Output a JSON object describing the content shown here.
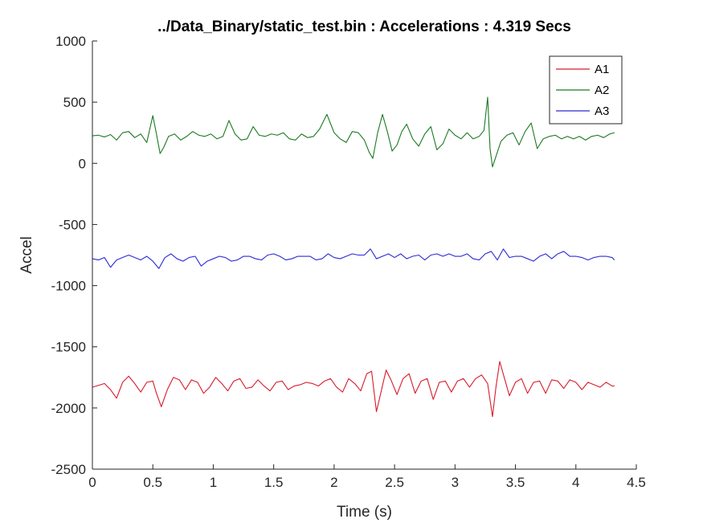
{
  "chart_data": {
    "type": "line",
    "title": "../Data_Binary/static_test.bin : Accelerations : 4.319 Secs",
    "xlabel": "Time (s)",
    "ylabel": "Accel",
    "xlim": [
      0,
      4.5
    ],
    "ylim": [
      -2500,
      1000
    ],
    "xticks": [
      0,
      0.5,
      1,
      1.5,
      2,
      2.5,
      3,
      3.5,
      4,
      4.5
    ],
    "xtick_labels": [
      "0",
      "0.5",
      "1",
      "1.5",
      "2",
      "2.5",
      "3",
      "3.5",
      "4",
      "4.5"
    ],
    "yticks": [
      -2500,
      -2000,
      -1500,
      -1000,
      -500,
      0,
      500,
      1000
    ],
    "ytick_labels": [
      "-2500",
      "-2000",
      "-1500",
      "-1000",
      "-500",
      "0",
      "500",
      "1000"
    ],
    "grid": false,
    "legend_position": "top-right",
    "series": [
      {
        "name": "A1",
        "color": "#d81b2c",
        "x": [
          0,
          0.1,
          0.15,
          0.2,
          0.25,
          0.3,
          0.35,
          0.4,
          0.45,
          0.5,
          0.53,
          0.57,
          0.62,
          0.67,
          0.72,
          0.77,
          0.82,
          0.87,
          0.92,
          0.97,
          1.02,
          1.07,
          1.12,
          1.17,
          1.22,
          1.27,
          1.32,
          1.37,
          1.42,
          1.47,
          1.52,
          1.57,
          1.62,
          1.67,
          1.72,
          1.77,
          1.82,
          1.87,
          1.92,
          1.97,
          2.02,
          2.07,
          2.12,
          2.17,
          2.22,
          2.27,
          2.31,
          2.35,
          2.39,
          2.43,
          2.47,
          2.52,
          2.57,
          2.62,
          2.67,
          2.72,
          2.77,
          2.82,
          2.87,
          2.92,
          2.97,
          3.02,
          3.07,
          3.12,
          3.17,
          3.22,
          3.27,
          3.31,
          3.34,
          3.37,
          3.41,
          3.45,
          3.5,
          3.55,
          3.6,
          3.65,
          3.7,
          3.75,
          3.8,
          3.85,
          3.9,
          3.95,
          4.0,
          4.05,
          4.1,
          4.15,
          4.2,
          4.25,
          4.3,
          4.319
        ],
        "y": [
          -1830,
          -1800,
          -1850,
          -1920,
          -1790,
          -1740,
          -1800,
          -1870,
          -1790,
          -1780,
          -1880,
          -1990,
          -1850,
          -1750,
          -1770,
          -1850,
          -1770,
          -1790,
          -1880,
          -1830,
          -1750,
          -1800,
          -1860,
          -1780,
          -1760,
          -1840,
          -1830,
          -1770,
          -1820,
          -1860,
          -1790,
          -1780,
          -1850,
          -1820,
          -1810,
          -1790,
          -1800,
          -1820,
          -1780,
          -1760,
          -1830,
          -1870,
          -1760,
          -1800,
          -1860,
          -1720,
          -1700,
          -2030,
          -1860,
          -1690,
          -1770,
          -1890,
          -1760,
          -1720,
          -1880,
          -1780,
          -1760,
          -1930,
          -1790,
          -1780,
          -1870,
          -1780,
          -1760,
          -1830,
          -1760,
          -1730,
          -1800,
          -2070,
          -1820,
          -1620,
          -1760,
          -1900,
          -1790,
          -1760,
          -1880,
          -1790,
          -1780,
          -1880,
          -1770,
          -1780,
          -1840,
          -1770,
          -1790,
          -1850,
          -1790,
          -1810,
          -1830,
          -1790,
          -1820,
          -1820
        ]
      },
      {
        "name": "A2",
        "color": "#1b7a23",
        "x": [
          0,
          0.05,
          0.1,
          0.15,
          0.2,
          0.25,
          0.3,
          0.35,
          0.4,
          0.45,
          0.5,
          0.53,
          0.56,
          0.59,
          0.63,
          0.68,
          0.73,
          0.78,
          0.83,
          0.88,
          0.93,
          0.98,
          1.03,
          1.08,
          1.13,
          1.18,
          1.23,
          1.28,
          1.33,
          1.38,
          1.43,
          1.48,
          1.53,
          1.58,
          1.63,
          1.68,
          1.73,
          1.78,
          1.83,
          1.88,
          1.94,
          2.0,
          2.05,
          2.1,
          2.15,
          2.2,
          2.25,
          2.29,
          2.32,
          2.36,
          2.4,
          2.44,
          2.48,
          2.52,
          2.56,
          2.6,
          2.65,
          2.7,
          2.75,
          2.8,
          2.85,
          2.9,
          2.95,
          3.0,
          3.05,
          3.1,
          3.15,
          3.2,
          3.24,
          3.27,
          3.29,
          3.31,
          3.34,
          3.38,
          3.43,
          3.48,
          3.53,
          3.58,
          3.63,
          3.68,
          3.73,
          3.78,
          3.83,
          3.88,
          3.93,
          3.98,
          4.03,
          4.08,
          4.13,
          4.18,
          4.23,
          4.28,
          4.319
        ],
        "y": [
          225,
          230,
          215,
          235,
          190,
          250,
          260,
          210,
          240,
          170,
          390,
          240,
          80,
          130,
          220,
          240,
          190,
          220,
          260,
          230,
          220,
          240,
          200,
          220,
          350,
          240,
          190,
          200,
          300,
          230,
          220,
          240,
          230,
          250,
          200,
          190,
          240,
          210,
          220,
          280,
          400,
          250,
          200,
          170,
          260,
          250,
          190,
          90,
          40,
          250,
          400,
          260,
          100,
          150,
          260,
          320,
          200,
          140,
          240,
          300,
          110,
          160,
          280,
          230,
          200,
          250,
          200,
          220,
          270,
          540,
          120,
          -30,
          60,
          180,
          230,
          250,
          150,
          260,
          330,
          120,
          200,
          220,
          230,
          200,
          220,
          200,
          220,
          190,
          220,
          230,
          210,
          240,
          250
        ]
      },
      {
        "name": "A3",
        "color": "#2a2ad6",
        "x": [
          0,
          0.05,
          0.1,
          0.15,
          0.2,
          0.25,
          0.3,
          0.35,
          0.4,
          0.45,
          0.5,
          0.55,
          0.6,
          0.65,
          0.7,
          0.75,
          0.8,
          0.85,
          0.9,
          0.95,
          1.0,
          1.05,
          1.1,
          1.15,
          1.2,
          1.25,
          1.3,
          1.35,
          1.4,
          1.45,
          1.5,
          1.55,
          1.6,
          1.65,
          1.7,
          1.75,
          1.8,
          1.85,
          1.9,
          1.95,
          2.0,
          2.05,
          2.1,
          2.15,
          2.2,
          2.25,
          2.3,
          2.35,
          2.4,
          2.45,
          2.5,
          2.55,
          2.6,
          2.65,
          2.7,
          2.75,
          2.8,
          2.85,
          2.9,
          2.95,
          3.0,
          3.05,
          3.1,
          3.15,
          3.2,
          3.25,
          3.3,
          3.35,
          3.4,
          3.45,
          3.5,
          3.55,
          3.6,
          3.65,
          3.7,
          3.75,
          3.8,
          3.85,
          3.9,
          3.95,
          4.0,
          4.05,
          4.1,
          4.15,
          4.2,
          4.25,
          4.3,
          4.319
        ],
        "y": [
          -780,
          -790,
          -770,
          -850,
          -790,
          -770,
          -750,
          -770,
          -790,
          -760,
          -800,
          -860,
          -770,
          -740,
          -780,
          -800,
          -770,
          -760,
          -840,
          -800,
          -780,
          -760,
          -770,
          -800,
          -790,
          -760,
          -760,
          -780,
          -790,
          -750,
          -740,
          -760,
          -790,
          -780,
          -760,
          -760,
          -760,
          -790,
          -780,
          -740,
          -770,
          -780,
          -760,
          -740,
          -750,
          -750,
          -700,
          -780,
          -760,
          -740,
          -770,
          -740,
          -780,
          -760,
          -750,
          -790,
          -750,
          -740,
          -760,
          -740,
          -760,
          -760,
          -740,
          -780,
          -790,
          -740,
          -720,
          -790,
          -700,
          -770,
          -760,
          -760,
          -780,
          -800,
          -760,
          -740,
          -780,
          -740,
          -720,
          -760,
          -760,
          -770,
          -790,
          -770,
          -760,
          -760,
          -770,
          -790
        ]
      }
    ]
  }
}
